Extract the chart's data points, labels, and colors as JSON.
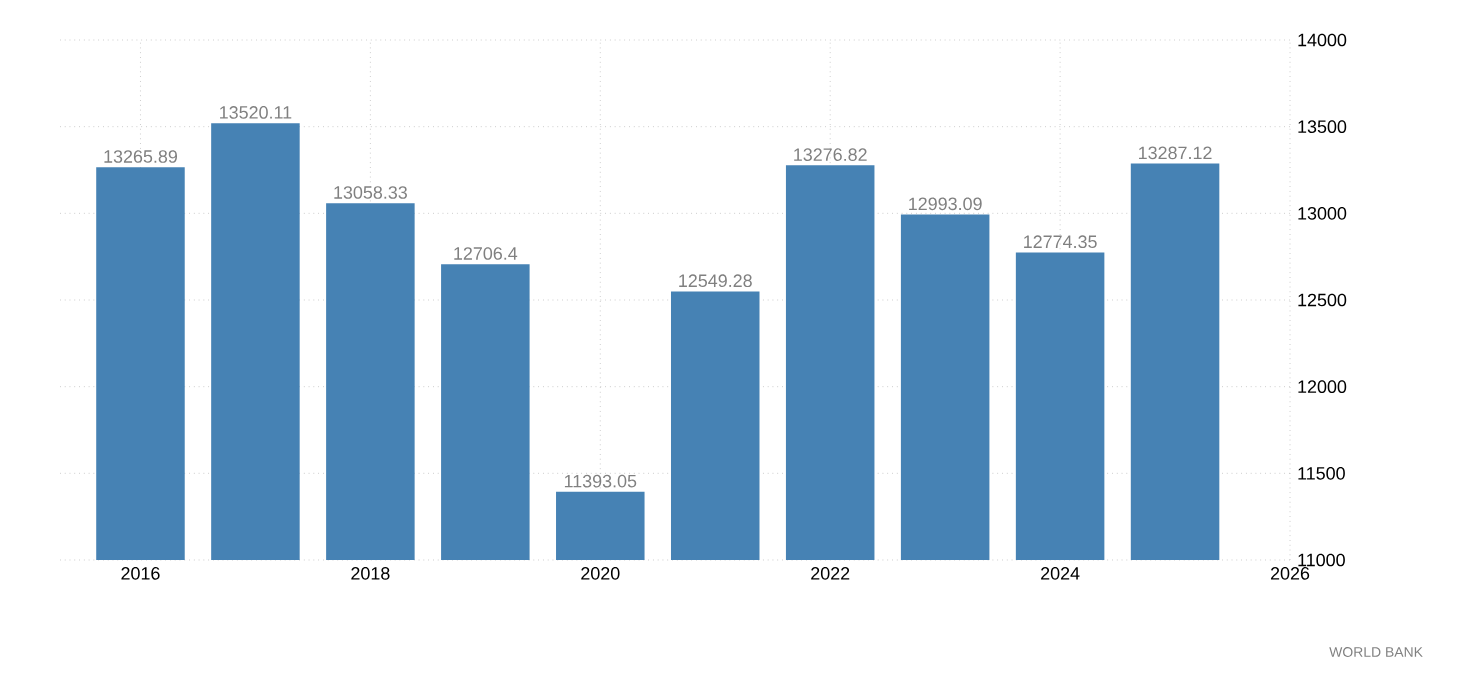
{
  "chart_data": {
    "type": "bar",
    "x": [
      2016,
      2017,
      2018,
      2019,
      2020,
      2021,
      2022,
      2023,
      2024,
      2025
    ],
    "values": [
      13265.89,
      13520.11,
      13058.33,
      12706.4,
      11393.05,
      12549.28,
      13276.82,
      12993.09,
      12774.35,
      13287.12
    ],
    "color": "#4682b4",
    "data_labels": true,
    "grid": true,
    "xlim": [
      2015.3,
      2026
    ],
    "xticks": [
      2016,
      2018,
      2020,
      2022,
      2024,
      2026
    ],
    "ylim": [
      11000,
      14000
    ],
    "yticks": [
      11000,
      11500,
      12000,
      12500,
      13000,
      13500,
      14000
    ],
    "annotations": [
      "WORLD BANK"
    ]
  }
}
